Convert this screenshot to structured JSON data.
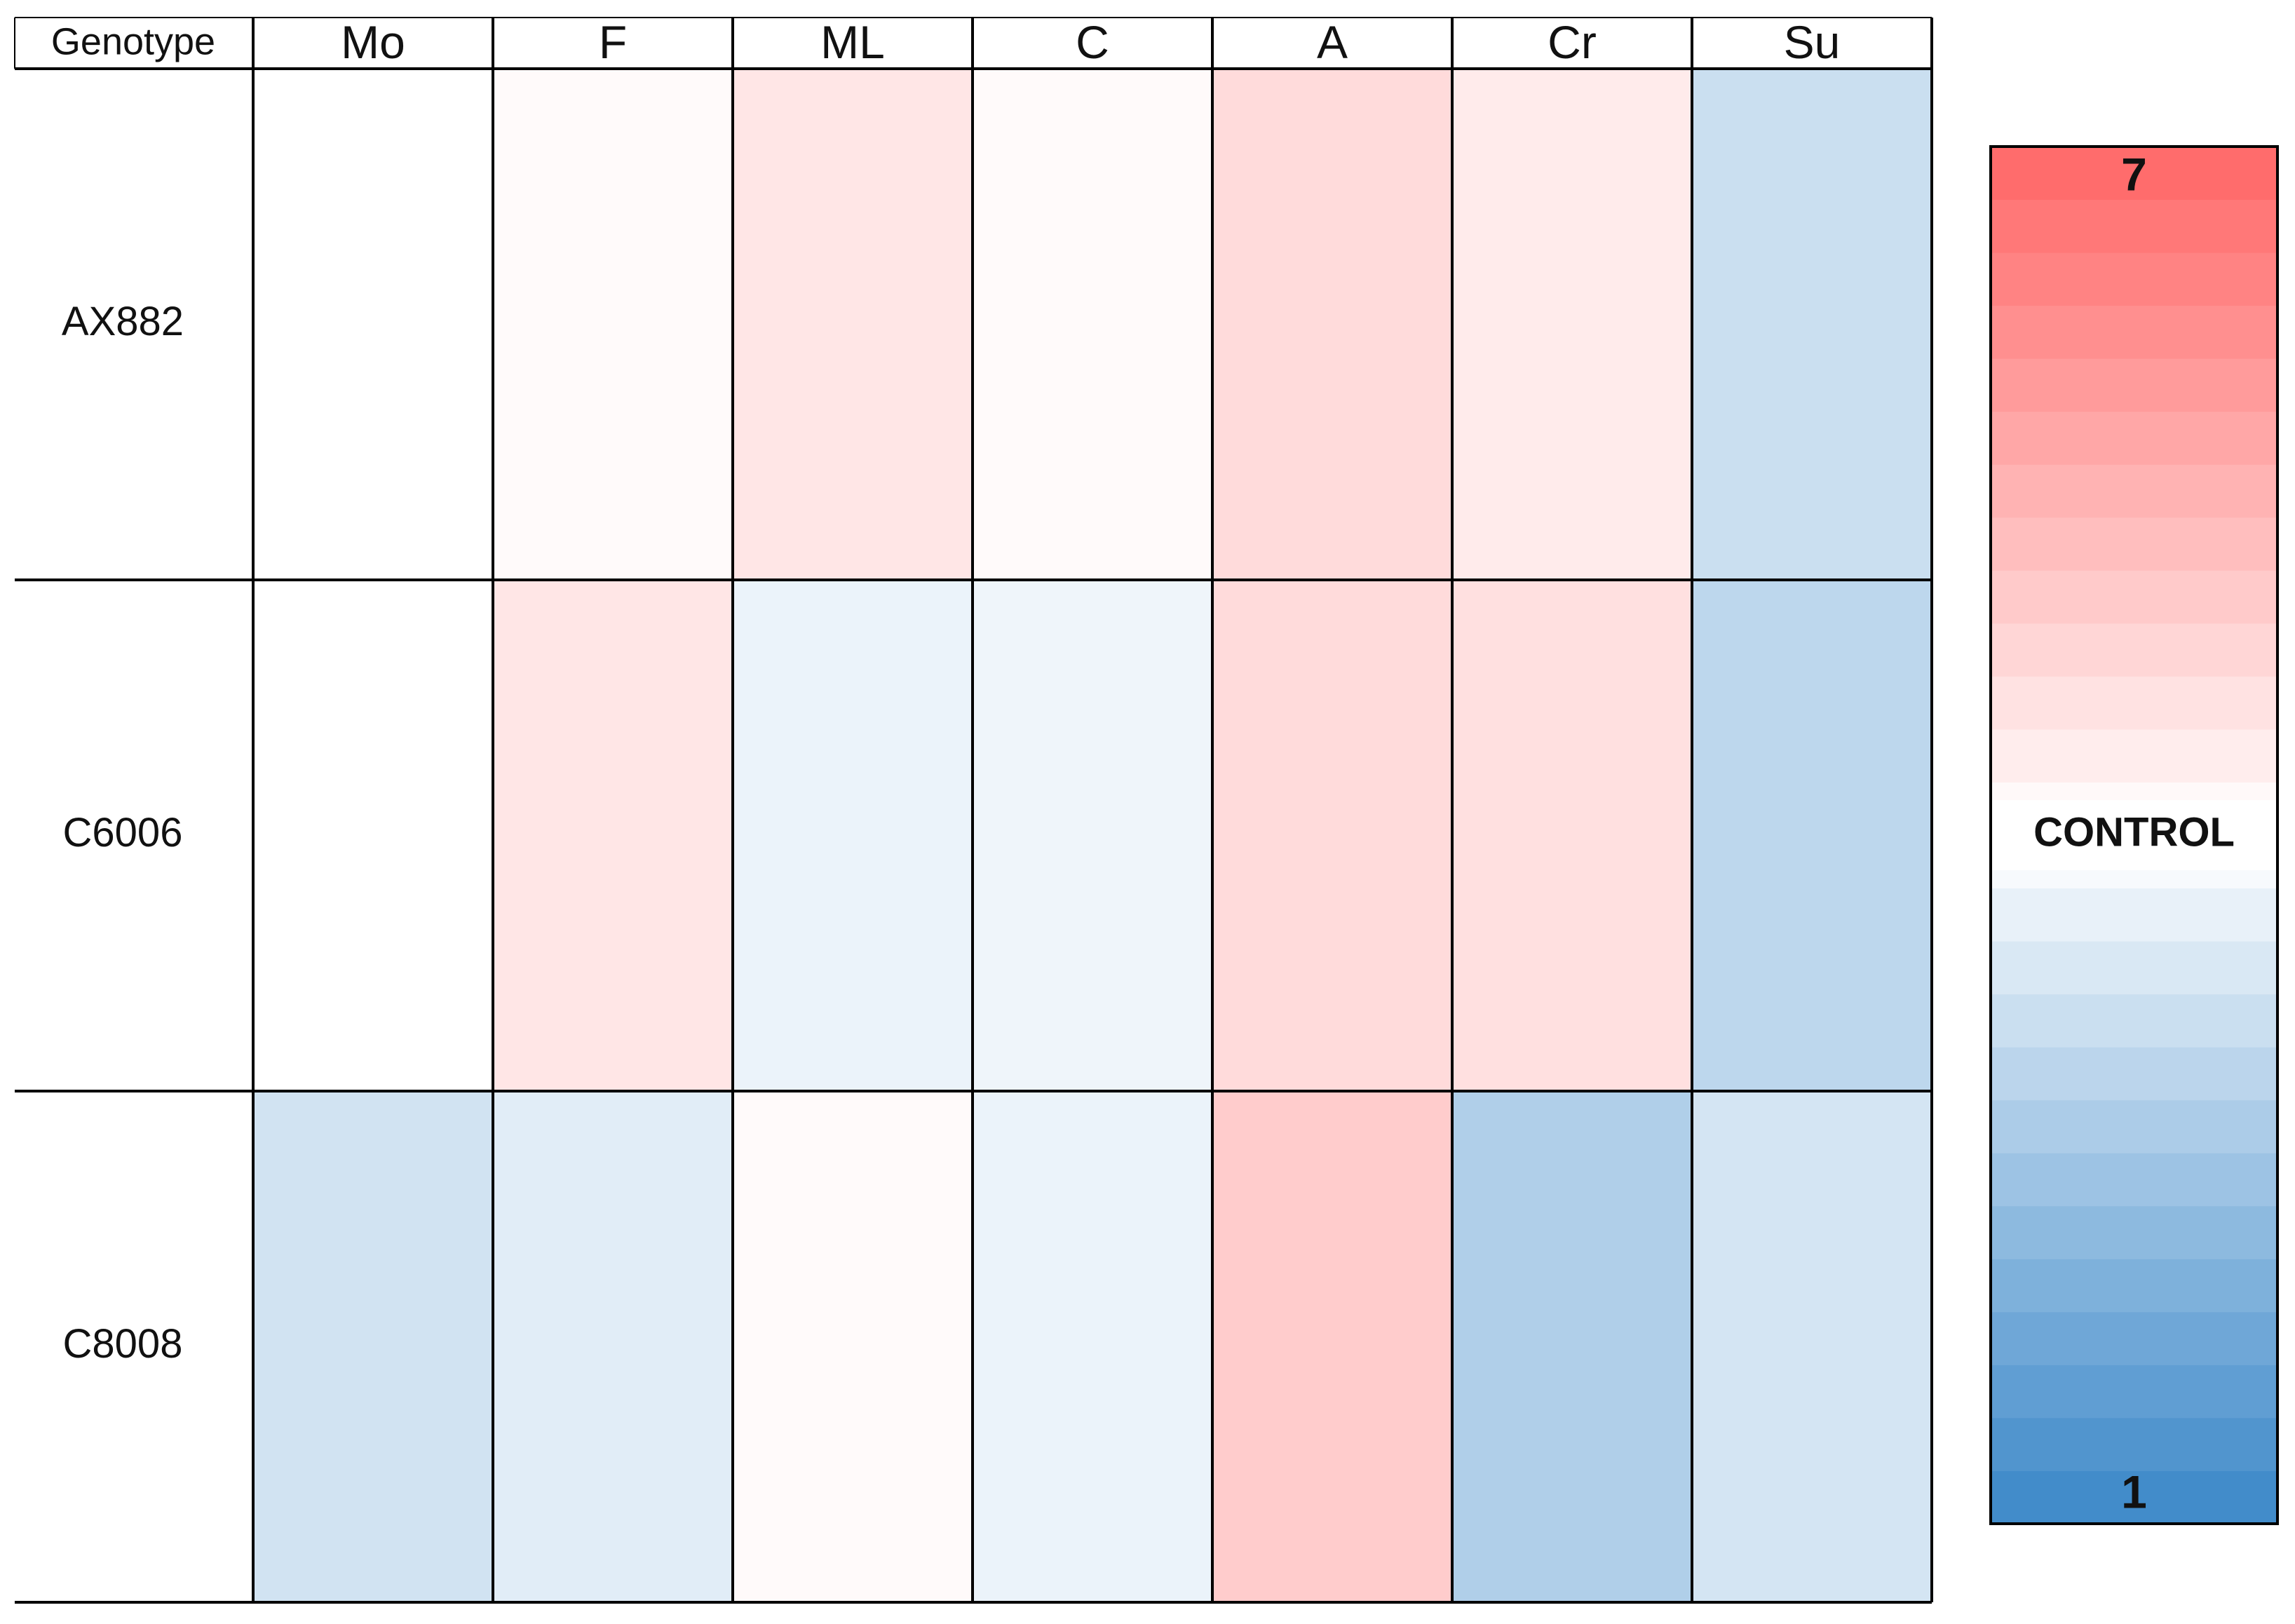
{
  "chart_data": {
    "type": "heatmap",
    "corner_label": "Genotype",
    "columns": [
      "Mo",
      "F",
      "ML",
      "C",
      "A",
      "Cr",
      "Su"
    ],
    "rows": [
      "AX882",
      "C6006",
      "C8008"
    ],
    "values": [
      [
        4.0,
        4.1,
        4.5,
        4.1,
        4.7,
        4.4,
        3.2
      ],
      [
        4.0,
        4.5,
        3.7,
        3.75,
        4.7,
        4.6,
        3.0
      ],
      [
        3.3,
        3.55,
        4.1,
        3.7,
        5.0,
        2.8,
        3.35
      ]
    ],
    "zlim": [
      1,
      7
    ],
    "zticks": [
      1,
      {
        "value": 4,
        "label": "CONTROL"
      },
      7
    ],
    "colors": [
      "#3a87c8",
      "#ffffff",
      "#ff6666"
    ],
    "colorbar_steps": 26
  }
}
